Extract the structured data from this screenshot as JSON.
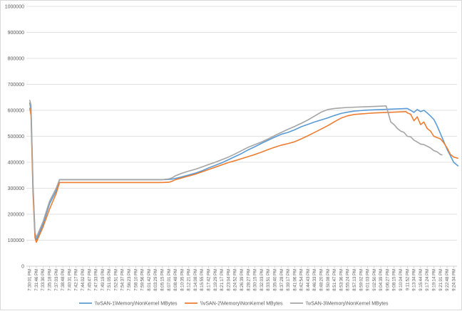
{
  "chart_data": {
    "type": "line",
    "title": "",
    "xlabel": "",
    "ylabel": "",
    "ylim": [
      0,
      1000000
    ],
    "yticks": [
      0,
      100000,
      200000,
      300000,
      400000,
      500000,
      600000,
      700000,
      800000,
      900000,
      1000000
    ],
    "grid": true,
    "legend_position": "bottom",
    "x_tick_labels": [
      "7:30:01 PM",
      "7:31:46 PM",
      "7:33:30 PM",
      "7:35:18 PM",
      "7:37:03 PM",
      "7:38:48 PM",
      "7:40:31 PM",
      "7:42:17 PM",
      "7:44:02 PM",
      "7:45:47 PM",
      "7:47:33 PM",
      "7:49:19 PM",
      "7:51:05 PM",
      "7:52:51 PM",
      "7:54:37 PM",
      "7:56:23 PM",
      "7:58:10 PM",
      "7:59:56 PM",
      "8:01:42 PM",
      "8:03:29 PM",
      "8:05:15 PM",
      "8:07:01 PM",
      "8:08:48 PM",
      "8:10:35 PM",
      "8:12:21 PM",
      "8:14:08 PM",
      "8:15:55 PM",
      "8:17:42 PM",
      "8:19:29 PM",
      "8:21:17 PM",
      "8:23:04 PM",
      "8:24:52 PM",
      "8:26:39 PM",
      "8:28:27 PM",
      "8:30:15 PM",
      "8:32:03 PM",
      "8:33:51 PM",
      "8:35:40 PM",
      "8:37:28 PM",
      "8:39:17 PM",
      "8:41:06 PM",
      "8:42:54 PM",
      "8:44:43 PM",
      "8:46:33 PM",
      "8:48:20 PM",
      "8:50:08 PM",
      "8:51:47 PM",
      "8:53:36 PM",
      "8:55:24 PM",
      "8:57:13 PM",
      "8:59:02 PM",
      "9:01:03 PM",
      "9:02:50 PM",
      "9:04:39 PM",
      "9:06:27 PM",
      "9:08:15 PM",
      "9:10:04 PM",
      "9:11:52 PM",
      "9:13:34 PM",
      "9:15:44 PM",
      "9:17:24 PM",
      "9:19:14 PM",
      "9:21:01 PM",
      "9:22:48 PM",
      "9:24:34 PM"
    ],
    "x_count": 65,
    "series": [
      {
        "name": "\\\\vSAN-1\\Memory\\NonKernel MBytes",
        "color": "#5b9bd5",
        "points": [
          [
            0,
            630000
          ],
          [
            0.2,
            600000
          ],
          [
            0.5,
            300000
          ],
          [
            0.8,
            120000
          ],
          [
            1,
            100000
          ],
          [
            2,
            160000
          ],
          [
            3,
            240000
          ],
          [
            4,
            290000
          ],
          [
            4.5,
            333000
          ],
          [
            19,
            333000
          ],
          [
            20,
            333000
          ],
          [
            21,
            334000
          ],
          [
            21.5,
            335000
          ],
          [
            22,
            338000
          ],
          [
            23,
            344000
          ],
          [
            24,
            351000
          ],
          [
            25,
            358000
          ],
          [
            26,
            367000
          ],
          [
            27,
            378000
          ],
          [
            28,
            388000
          ],
          [
            29,
            398000
          ],
          [
            30,
            410000
          ],
          [
            31,
            422000
          ],
          [
            32,
            434000
          ],
          [
            33,
            448000
          ],
          [
            34,
            460000
          ],
          [
            35,
            473000
          ],
          [
            36,
            485000
          ],
          [
            37,
            497000
          ],
          [
            38,
            508000
          ],
          [
            39,
            515000
          ],
          [
            40,
            525000
          ],
          [
            41,
            537000
          ],
          [
            42,
            546000
          ],
          [
            43,
            555000
          ],
          [
            44,
            563000
          ],
          [
            45,
            571000
          ],
          [
            46,
            580000
          ],
          [
            47,
            588000
          ],
          [
            48,
            593000
          ],
          [
            49,
            597000
          ],
          [
            50,
            599000
          ],
          [
            51,
            601000
          ],
          [
            52,
            602000
          ],
          [
            53,
            603000
          ],
          [
            54,
            604000
          ],
          [
            55,
            605000
          ],
          [
            56,
            606000
          ],
          [
            57,
            607000
          ],
          [
            57.5,
            600000
          ],
          [
            58,
            592000
          ],
          [
            58.5,
            603000
          ],
          [
            59,
            595000
          ],
          [
            59.5,
            600000
          ],
          [
            60,
            590000
          ],
          [
            60.5,
            578000
          ],
          [
            61,
            565000
          ],
          [
            61.5,
            540000
          ],
          [
            62,
            510000
          ],
          [
            62.5,
            480000
          ],
          [
            63,
            450000
          ],
          [
            63.5,
            425000
          ],
          [
            64,
            400000
          ],
          [
            64.7,
            385000
          ]
        ]
      },
      {
        "name": "\\\\vSAN-2\\Memory\\NonKernel MBytes",
        "color": "#ed7d31",
        "points": [
          [
            0,
            610000
          ],
          [
            0.2,
            580000
          ],
          [
            0.5,
            280000
          ],
          [
            0.8,
            110000
          ],
          [
            1,
            92000
          ],
          [
            2,
            150000
          ],
          [
            3,
            220000
          ],
          [
            4,
            280000
          ],
          [
            4.5,
            322000
          ],
          [
            19,
            322000
          ],
          [
            20,
            322000
          ],
          [
            21,
            323000
          ],
          [
            21.5,
            327000
          ],
          [
            22,
            333000
          ],
          [
            23,
            340000
          ],
          [
            24,
            347000
          ],
          [
            25,
            354000
          ],
          [
            26,
            363000
          ],
          [
            27,
            372000
          ],
          [
            28,
            381000
          ],
          [
            29,
            390000
          ],
          [
            30,
            399000
          ],
          [
            31,
            406000
          ],
          [
            32,
            414000
          ],
          [
            33,
            422000
          ],
          [
            34,
            430000
          ],
          [
            35,
            439000
          ],
          [
            36,
            449000
          ],
          [
            37,
            458000
          ],
          [
            38,
            466000
          ],
          [
            39,
            472000
          ],
          [
            40,
            479000
          ],
          [
            41,
            490000
          ],
          [
            42,
            502000
          ],
          [
            43,
            515000
          ],
          [
            44,
            528000
          ],
          [
            45,
            541000
          ],
          [
            46,
            556000
          ],
          [
            47,
            570000
          ],
          [
            48,
            579000
          ],
          [
            49,
            584000
          ],
          [
            50,
            586000
          ],
          [
            51,
            588000
          ],
          [
            52,
            590000
          ],
          [
            53,
            591000
          ],
          [
            54,
            592000
          ],
          [
            55,
            593000
          ],
          [
            56,
            594000
          ],
          [
            56.8,
            595000
          ],
          [
            57,
            590000
          ],
          [
            57.5,
            585000
          ],
          [
            58,
            560000
          ],
          [
            58.5,
            575000
          ],
          [
            59,
            545000
          ],
          [
            59.5,
            555000
          ],
          [
            60,
            530000
          ],
          [
            60.5,
            520000
          ],
          [
            61,
            500000
          ],
          [
            61.5,
            495000
          ],
          [
            62,
            490000
          ],
          [
            62.5,
            475000
          ],
          [
            63,
            455000
          ],
          [
            63.5,
            430000
          ],
          [
            64,
            420000
          ],
          [
            64.7,
            415000
          ]
        ]
      },
      {
        "name": "\\\\vSAN-3\\Memory\\NonKernel MBytes",
        "color": "#a5a5a5",
        "points": [
          [
            0,
            640000
          ],
          [
            0.2,
            620000
          ],
          [
            0.5,
            320000
          ],
          [
            0.8,
            130000
          ],
          [
            1,
            110000
          ],
          [
            2,
            170000
          ],
          [
            3,
            250000
          ],
          [
            4,
            300000
          ],
          [
            4.5,
            333000
          ],
          [
            19,
            333000
          ],
          [
            20,
            333000
          ],
          [
            21,
            336000
          ],
          [
            21.5,
            340000
          ],
          [
            22,
            348000
          ],
          [
            23,
            358000
          ],
          [
            24,
            366000
          ],
          [
            25,
            373000
          ],
          [
            26,
            382000
          ],
          [
            27,
            391000
          ],
          [
            28,
            400000
          ],
          [
            29,
            410000
          ],
          [
            30,
            420000
          ],
          [
            31,
            432000
          ],
          [
            32,
            445000
          ],
          [
            33,
            458000
          ],
          [
            34,
            468000
          ],
          [
            35,
            478000
          ],
          [
            36,
            490000
          ],
          [
            37,
            503000
          ],
          [
            38,
            515000
          ],
          [
            39,
            527000
          ],
          [
            40,
            538000
          ],
          [
            41,
            550000
          ],
          [
            42,
            563000
          ],
          [
            43,
            578000
          ],
          [
            44,
            593000
          ],
          [
            45,
            603000
          ],
          [
            46,
            607000
          ],
          [
            47,
            609000
          ],
          [
            48,
            611000
          ],
          [
            49,
            612000
          ],
          [
            50,
            613000
          ],
          [
            51,
            614000
          ],
          [
            52,
            615000
          ],
          [
            53,
            616000
          ],
          [
            53.8,
            617000
          ],
          [
            54,
            600000
          ],
          [
            54.5,
            555000
          ],
          [
            55,
            545000
          ],
          [
            55.5,
            530000
          ],
          [
            56,
            520000
          ],
          [
            56.5,
            515000
          ],
          [
            57,
            500000
          ],
          [
            57.5,
            498000
          ],
          [
            58,
            485000
          ],
          [
            58.5,
            478000
          ],
          [
            59,
            470000
          ],
          [
            59.5,
            468000
          ],
          [
            60,
            462000
          ],
          [
            60.5,
            455000
          ],
          [
            61,
            445000
          ],
          [
            61.5,
            440000
          ],
          [
            62,
            430000
          ],
          [
            62.3,
            428000
          ]
        ]
      }
    ]
  }
}
